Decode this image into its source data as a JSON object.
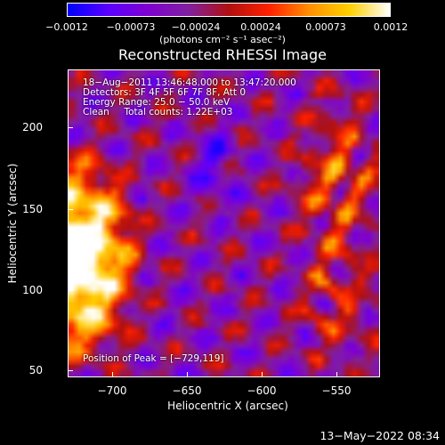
{
  "colorbar": {
    "ticks": [
      "−0.0012",
      "−0.00073",
      "−0.00024",
      "0.00024",
      "0.00073",
      "0.0012"
    ],
    "units": "(photons cm⁻² s⁻¹ asec⁻²)",
    "colors": [
      "#0000ff",
      "#5a00ff",
      "#8000d0",
      "#8020a0",
      "#b01010",
      "#ff2000",
      "#ff9000",
      "#ffd000",
      "#ffffff"
    ]
  },
  "title": "Reconstructed RHESSI Image",
  "info": {
    "line1": "18−Aug−2011 13:46:48.000 to 13:47:20.000",
    "line2": "Detectors: 3F 4F 5F 6F 7F 8F, Att 0",
    "line3": "Energy Range: 25.0 − 50.0 keV",
    "line4": "Clean     Total counts: 1.22E+03",
    "peak": "Position of Peak = [−729,119]"
  },
  "axes": {
    "xlabel": "Heliocentric X (arcsec)",
    "ylabel": "Heliocentric Y (arcsec)",
    "xticks": [
      "−700",
      "−650",
      "−600",
      "−550"
    ],
    "yticks": [
      "200",
      "150",
      "100",
      "50"
    ]
  },
  "timestamp": "13−May−2022 08:34"
}
